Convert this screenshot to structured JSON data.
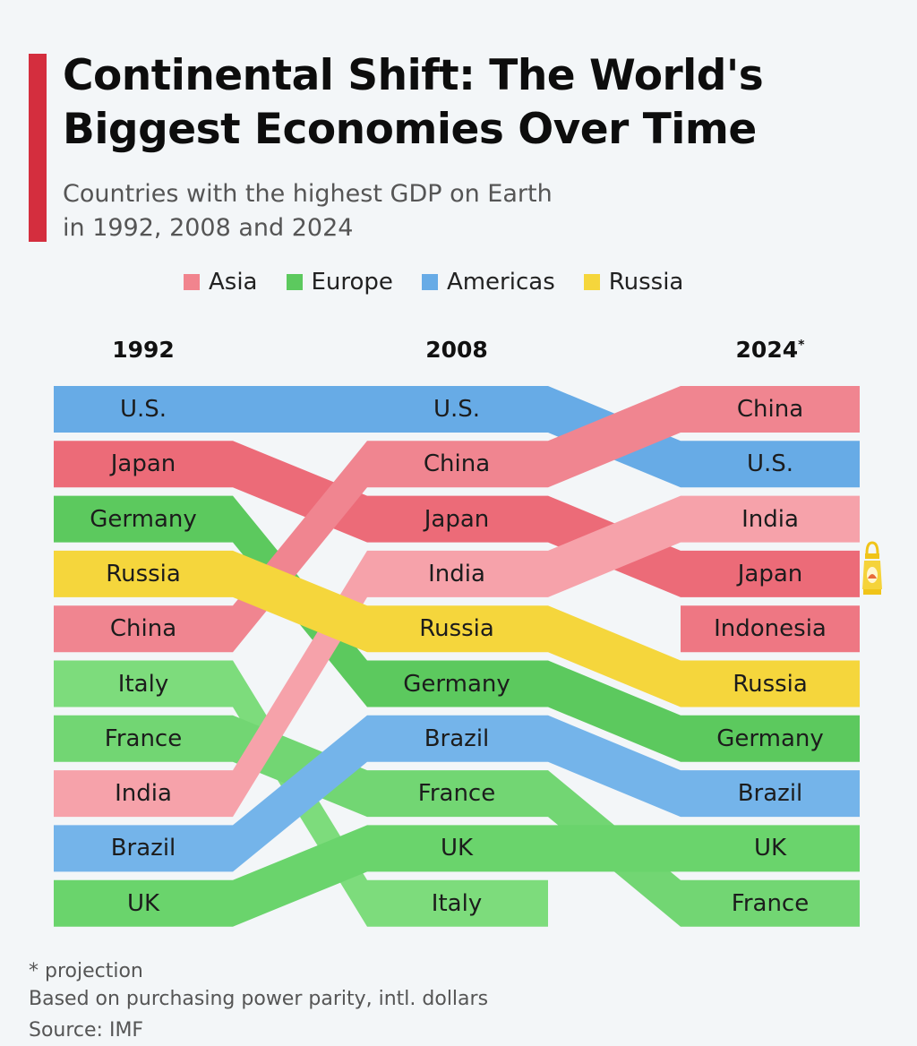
{
  "title": "Continental Shift: The World's Biggest Economies Over Time",
  "subtitle_line1": "Countries with the highest GDP on Earth",
  "subtitle_line2": "in 1992, 2008 and 2024",
  "footer": {
    "note": "* projection",
    "basis": "Based on purchasing power parity, intl. dollars",
    "source": "Source: IMF"
  },
  "chart_data": {
    "type": "bump",
    "title": "Continental Shift: The World's Biggest Economies Over Time",
    "legend": [
      {
        "name": "Asia",
        "color": "#f1848e"
      },
      {
        "name": "Europe",
        "color": "#5cc95e"
      },
      {
        "name": "Americas",
        "color": "#67abe6"
      },
      {
        "name": "Russia",
        "color": "#f5d63c"
      }
    ],
    "years": [
      "1992",
      "2008",
      "2024"
    ],
    "year_marks": [
      "",
      "",
      "*"
    ],
    "rankings": {
      "1992": [
        "U.S.",
        "Japan",
        "Germany",
        "Russia",
        "China",
        "Italy",
        "France",
        "India",
        "Brazil",
        "UK"
      ],
      "2008": [
        "U.S.",
        "China",
        "Japan",
        "India",
        "Russia",
        "Germany",
        "Brazil",
        "France",
        "UK",
        "Italy"
      ],
      "2024": [
        "China",
        "U.S.",
        "India",
        "Japan",
        "Indonesia",
        "Russia",
        "Germany",
        "Brazil",
        "UK",
        "France"
      ]
    },
    "country_colors": {
      "U.S.": "#67abe6",
      "Brazil": "#74b4ea",
      "China": "#f08590",
      "Japan": "#ec6b78",
      "India": "#f6a2aa",
      "Indonesia": "#ee7783",
      "Germany": "#5cc95e",
      "Italy": "#7ddc7c",
      "France": "#72d673",
      "UK": "#6ad46c",
      "Russia": "#f5d63c"
    }
  }
}
